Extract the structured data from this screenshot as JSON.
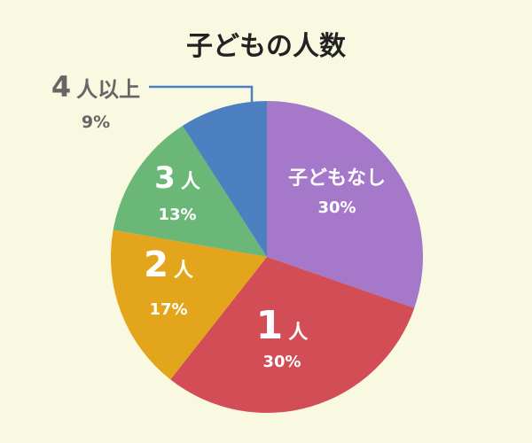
{
  "chart_data": {
    "type": "pie",
    "title": "子どもの人数",
    "slices": [
      {
        "label": "子どもなし",
        "count_num": "",
        "count_unit": "",
        "value": 30,
        "pct_text": "30%",
        "color": "#a678c9",
        "label_color": "#ffffff"
      },
      {
        "label": "1人",
        "count_num": "1",
        "count_unit": "人",
        "value": 30,
        "pct_text": "30%",
        "color": "#d24d55",
        "label_color": "#ffffff"
      },
      {
        "label": "2人",
        "count_num": "2",
        "count_unit": "人",
        "value": 17,
        "pct_text": "17%",
        "color": "#e2a51b",
        "label_color": "#ffffff"
      },
      {
        "label": "3人",
        "count_num": "3",
        "count_unit": "人",
        "value": 13,
        "pct_text": "13%",
        "color": "#6ab778",
        "label_color": "#ffffff"
      },
      {
        "label": "4人以上",
        "count_num": "4",
        "count_unit": "人以上",
        "value": 9,
        "pct_text": "9%",
        "color": "#4c80c1",
        "label_color": "#666666"
      }
    ]
  }
}
